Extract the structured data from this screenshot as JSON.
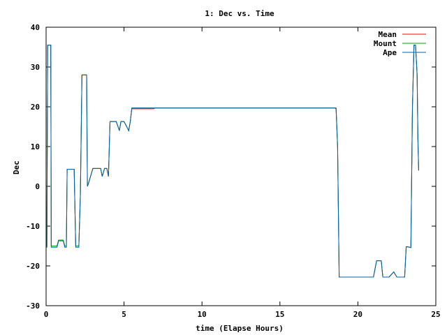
{
  "chart_data": {
    "type": "line",
    "title": "1: Dec vs. Time",
    "xlabel": "time (Elapse Hours)",
    "ylabel": "Dec",
    "xlim": [
      0,
      25
    ],
    "ylim": [
      -30,
      40
    ],
    "xticks": [
      0,
      5,
      10,
      15,
      20,
      25
    ],
    "yticks": [
      -30,
      -20,
      -10,
      0,
      10,
      20,
      30,
      40
    ],
    "grid": false,
    "legend_position": "top-right",
    "series": [
      {
        "name": "Mean",
        "color": "#ff0000",
        "x": [
          0,
          0.05,
          0.1,
          0.12,
          0.3,
          0.33,
          0.5,
          0.7,
          0.8,
          1.1,
          1.2,
          1.3,
          1.35,
          1.45,
          1.8,
          1.9,
          2.0,
          2.1,
          2.2,
          2.3,
          2.35,
          2.6,
          2.65,
          2.7,
          3.0,
          3.1,
          3.5,
          3.6,
          3.75,
          3.8,
          3.9,
          4.0,
          4.1,
          4.2,
          4.25,
          4.5,
          4.7,
          4.8,
          4.9,
          5.0,
          5.3,
          5.4,
          5.5,
          5.6,
          6.0,
          6.9,
          7.0,
          18.5,
          18.6,
          18.7,
          18.8,
          19.0,
          20.0,
          20.5,
          21.0,
          21.2,
          21.5,
          21.6,
          22.0,
          22.3,
          22.5,
          22.6,
          23.0,
          23.1,
          23.2,
          23.4,
          23.5,
          23.6,
          23.7,
          23.8,
          23.85,
          23.9
        ],
        "y": [
          -15,
          -15,
          35.5,
          35.5,
          35.5,
          -15,
          -15,
          -15,
          -13.5,
          -13.5,
          -15,
          -15,
          4.3,
          4.3,
          4.3,
          -15,
          -15,
          -15,
          -2,
          28,
          28,
          28,
          0,
          0.5,
          4.5,
          4.5,
          4.5,
          2.5,
          4.5,
          4.5,
          4.5,
          2.5,
          16.3,
          16.3,
          16.3,
          16.3,
          14,
          16.3,
          16.3,
          16.3,
          14,
          16.3,
          19.5,
          19.5,
          19.5,
          19.5,
          19.7,
          19.7,
          19.5,
          10,
          -22.8,
          -22.8,
          -22.8,
          -22.8,
          -22.8,
          -18.7,
          -18.7,
          -22.8,
          -22.8,
          -21.5,
          -22.8,
          -22.8,
          -22.8,
          -15.2,
          -15.2,
          -15.4,
          20,
          35.5,
          35.5,
          28,
          12,
          4
        ]
      },
      {
        "name": "Mount",
        "color": "#00a000",
        "x": [
          0,
          0.05,
          0.1,
          0.12,
          0.3,
          0.33,
          0.5,
          0.7,
          0.8,
          1.1,
          1.2,
          1.3,
          1.35,
          1.45,
          1.8,
          1.9,
          2.0,
          2.1,
          2.2,
          2.3,
          2.35,
          2.6,
          2.65,
          2.7,
          3.0,
          3.1,
          3.5,
          3.6,
          3.75,
          3.8,
          3.9,
          4.0,
          4.1,
          4.2,
          4.25,
          4.5,
          4.7,
          4.8,
          4.9,
          5.0,
          5.3,
          5.4,
          5.5,
          5.6,
          6.0,
          6.9,
          7.0,
          18.5,
          18.6,
          18.7,
          18.8,
          19.0,
          20.0,
          20.5,
          21.0,
          21.2,
          21.5,
          21.6,
          22.0,
          22.3,
          22.5,
          22.6,
          23.0,
          23.1,
          23.2,
          23.4,
          23.5,
          23.6,
          23.7,
          23.8,
          23.85,
          23.9
        ],
        "y": [
          -15,
          -15,
          35.5,
          35.5,
          35.5,
          -15,
          -15,
          -15,
          -13.5,
          -13.5,
          -15,
          -15,
          4.3,
          4.3,
          4.3,
          -15,
          -15,
          -15,
          -2,
          28,
          28,
          28,
          0,
          0.5,
          4.5,
          4.5,
          4.5,
          2.5,
          4.5,
          4.5,
          4.5,
          2.5,
          16.3,
          16.3,
          16.3,
          16.3,
          14,
          16.3,
          16.3,
          16.3,
          14,
          16.3,
          19.7,
          19.7,
          19.7,
          19.7,
          19.7,
          19.7,
          19.7,
          10,
          -22.8,
          -22.8,
          -22.8,
          -22.8,
          -22.8,
          -18.7,
          -18.7,
          -22.8,
          -22.8,
          -21.5,
          -22.8,
          -22.8,
          -22.8,
          -15.2,
          -15.2,
          -15.4,
          20,
          35.5,
          35.5,
          28,
          12,
          4
        ]
      },
      {
        "name": "Ape",
        "color": "#0060ad",
        "x": [
          0,
          0.05,
          0.1,
          0.12,
          0.3,
          0.33,
          0.5,
          0.7,
          0.8,
          1.1,
          1.2,
          1.3,
          1.35,
          1.45,
          1.8,
          1.9,
          2.0,
          2.1,
          2.2,
          2.3,
          2.35,
          2.6,
          2.65,
          2.7,
          3.0,
          3.1,
          3.5,
          3.6,
          3.75,
          3.8,
          3.9,
          4.0,
          4.1,
          4.2,
          4.25,
          4.5,
          4.7,
          4.8,
          4.9,
          5.0,
          5.3,
          5.4,
          5.5,
          5.6,
          6.0,
          6.9,
          7.0,
          18.5,
          18.6,
          18.7,
          18.8,
          19.0,
          20.0,
          20.5,
          21.0,
          21.2,
          21.5,
          21.6,
          22.0,
          22.3,
          22.5,
          22.6,
          23.0,
          23.1,
          23.2,
          23.4,
          23.5,
          23.6,
          23.7,
          23.8,
          23.85,
          23.9
        ],
        "y": [
          -15.3,
          -15.3,
          35.5,
          35.5,
          35.5,
          -15.3,
          -15.3,
          -15.3,
          -13.7,
          -13.7,
          -15.3,
          -15.3,
          4.3,
          4.3,
          4.3,
          -15.3,
          -15.3,
          -15.3,
          -2,
          28,
          28,
          28,
          0,
          0.5,
          4.5,
          4.5,
          4.5,
          2.5,
          4.5,
          4.5,
          4.5,
          2.5,
          16.3,
          16.3,
          16.3,
          16.3,
          14,
          16.3,
          16.3,
          16.3,
          14,
          16.3,
          19.7,
          19.7,
          19.7,
          19.7,
          19.7,
          19.7,
          19.7,
          10,
          -22.8,
          -22.8,
          -22.8,
          -22.8,
          -22.8,
          -18.7,
          -18.7,
          -22.8,
          -22.8,
          -21.5,
          -22.8,
          -22.8,
          -22.8,
          -15.2,
          -15.2,
          -15.4,
          20,
          35.5,
          35.5,
          28,
          12,
          4
        ]
      }
    ]
  }
}
